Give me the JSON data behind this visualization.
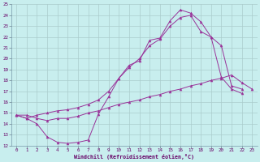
{
  "xlabel": "Windchill (Refroidissement éolien,°C)",
  "xlim": [
    -0.5,
    23.5
  ],
  "ylim": [
    12,
    25
  ],
  "xticks": [
    0,
    1,
    2,
    3,
    4,
    5,
    6,
    7,
    8,
    9,
    10,
    11,
    12,
    13,
    14,
    15,
    16,
    17,
    18,
    19,
    20,
    21,
    22,
    23
  ],
  "yticks": [
    12,
    13,
    14,
    15,
    16,
    17,
    18,
    19,
    20,
    21,
    22,
    23,
    24,
    25
  ],
  "bg_color": "#c8eeee",
  "grid_color": "#aacccc",
  "line_color": "#993399",
  "curve1_x": [
    0,
    1,
    2,
    3,
    4,
    5,
    6,
    7,
    8,
    9,
    10,
    11,
    12,
    13,
    14,
    15,
    16,
    17,
    18,
    19,
    20,
    21,
    22,
    23
  ],
  "curve1_y": [
    14.8,
    14.5,
    14.0,
    12.8,
    12.3,
    12.2,
    12.3,
    12.5,
    14.9,
    16.5,
    18.2,
    19.4,
    19.8,
    21.7,
    21.9,
    23.5,
    24.5,
    24.2,
    23.4,
    22.0,
    18.3,
    17.2,
    16.8,
    null
  ],
  "curve2_x": [
    0,
    1,
    2,
    3,
    4,
    5,
    6,
    7,
    8,
    9,
    10,
    11,
    12,
    13,
    14,
    15,
    16,
    17,
    18,
    19,
    20,
    21,
    22,
    23
  ],
  "curve2_y": [
    14.8,
    14.5,
    14.8,
    15.0,
    15.2,
    15.3,
    15.5,
    15.8,
    16.2,
    17.0,
    18.2,
    19.2,
    20.0,
    21.2,
    21.8,
    23.0,
    23.8,
    24.0,
    22.5,
    22.0,
    21.2,
    17.5,
    17.2,
    null
  ],
  "curve3_x": [
    0,
    1,
    2,
    3,
    4,
    5,
    6,
    7,
    8,
    9,
    10,
    11,
    12,
    13,
    14,
    15,
    16,
    17,
    18,
    19,
    20,
    21,
    22,
    23
  ],
  "curve3_y": [
    14.8,
    14.8,
    14.5,
    14.3,
    14.5,
    14.5,
    14.7,
    15.0,
    15.2,
    15.5,
    15.8,
    16.0,
    16.2,
    16.5,
    16.7,
    17.0,
    17.2,
    17.5,
    17.7,
    18.0,
    18.2,
    18.5,
    17.8,
    17.2
  ]
}
